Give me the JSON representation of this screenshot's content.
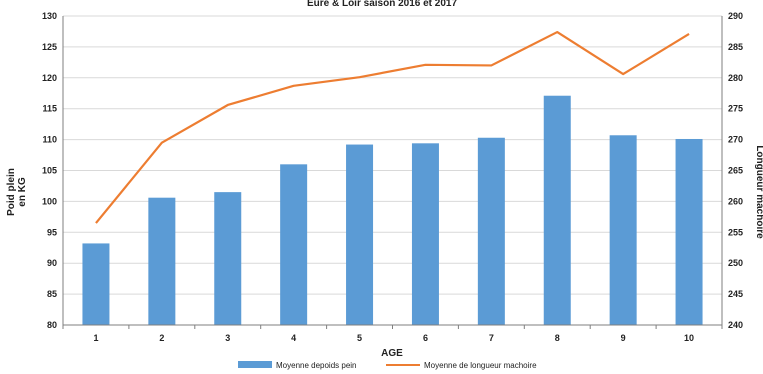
{
  "chart_data": {
    "type": "bar",
    "title": "Eure & Loir saison 2016 et 2017",
    "xlabel": "AGE",
    "ylabel": "Poid plein en KG",
    "y2label": "Longueur machoire",
    "categories": [
      "1",
      "2",
      "3",
      "4",
      "5",
      "6",
      "7",
      "8",
      "9",
      "10"
    ],
    "ylim": [
      80,
      130
    ],
    "yticks": [
      80,
      85,
      90,
      95,
      100,
      105,
      110,
      115,
      120,
      125,
      130
    ],
    "y2lim": [
      240,
      290
    ],
    "y2ticks": [
      240,
      245,
      250,
      255,
      260,
      265,
      270,
      275,
      280,
      285,
      290
    ],
    "grid": "horizontal",
    "legend": "bottom",
    "series": [
      {
        "name": "Moyenne depoids pein",
        "type": "bar",
        "axis": "left",
        "color": "#5b9bd5",
        "values": [
          93.2,
          100.6,
          101.5,
          106.0,
          109.2,
          109.4,
          110.3,
          117.1,
          110.7,
          110.1
        ]
      },
      {
        "name": "Moyenne de longueur machoire",
        "type": "line",
        "axis": "right",
        "color": "#ed7d31",
        "values": [
          256.5,
          269.5,
          275.6,
          278.7,
          280.1,
          282.1,
          282.0,
          287.4,
          280.6,
          287.1
        ]
      }
    ]
  }
}
